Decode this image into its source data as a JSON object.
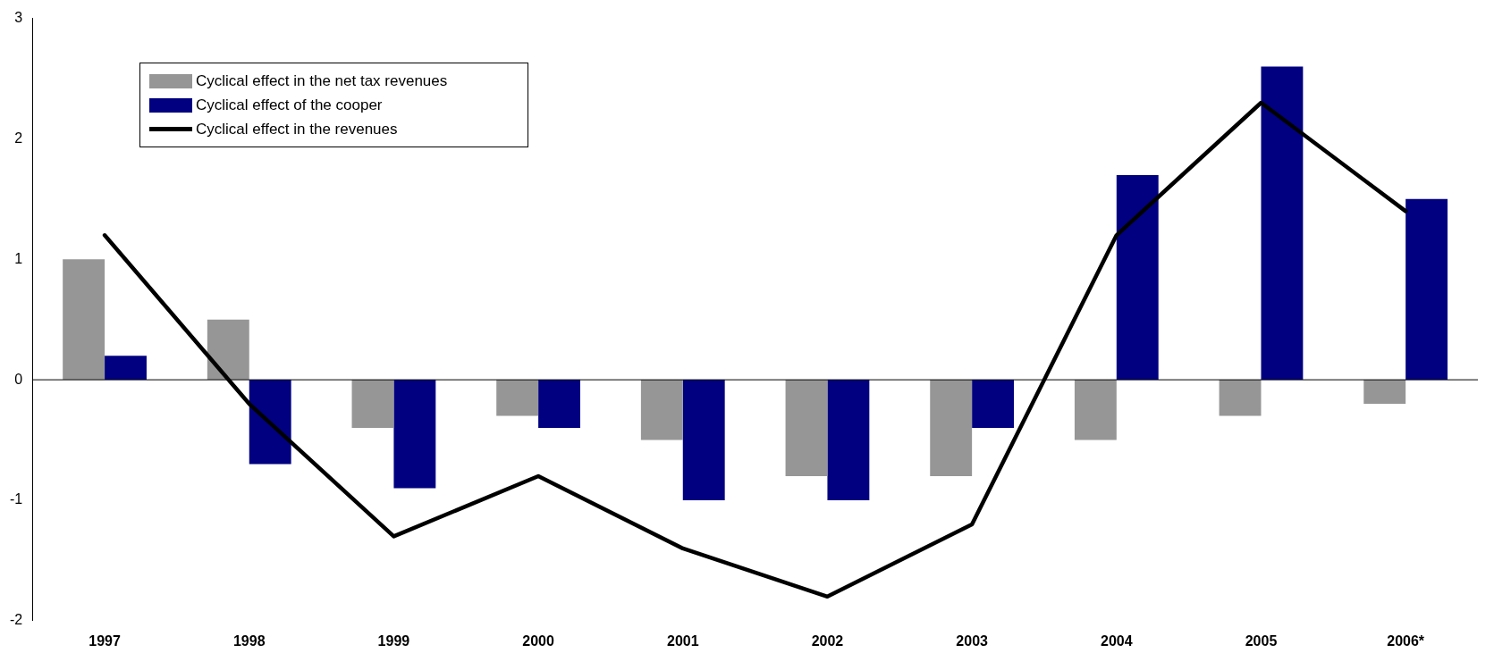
{
  "chart_data": {
    "type": "bar",
    "categories": [
      "1997",
      "1998",
      "1999",
      "2000",
      "2001",
      "2002",
      "2003",
      "2004",
      "2005",
      "2006*"
    ],
    "series": [
      {
        "name": "Cyclical effect in the net tax revenues",
        "color": "#969696",
        "values": [
          1.0,
          0.5,
          -0.4,
          -0.3,
          -0.5,
          -0.8,
          -0.8,
          -0.5,
          -0.3,
          -0.2
        ]
      },
      {
        "name": "Cyclical effect of the cooper",
        "color": "#000080",
        "values": [
          0.2,
          -0.7,
          -0.9,
          -0.4,
          -1.0,
          -1.0,
          -0.4,
          1.7,
          2.6,
          1.5
        ]
      },
      {
        "name": "Cyclical effect in the revenues",
        "color": "#000000",
        "type": "line",
        "values": [
          1.2,
          -0.2,
          -1.3,
          -0.8,
          -1.4,
          -1.8,
          -1.2,
          1.2,
          2.3,
          1.4
        ]
      }
    ],
    "ylim": [
      -2,
      3
    ],
    "yticks": [
      -2,
      -1,
      0,
      1,
      2,
      3
    ],
    "grid": false,
    "ref_lines": [
      {
        "axis": "y",
        "value": 0,
        "color": "#000000"
      }
    ],
    "legend": "top left",
    "marker": "none",
    "line_style": "solid"
  }
}
